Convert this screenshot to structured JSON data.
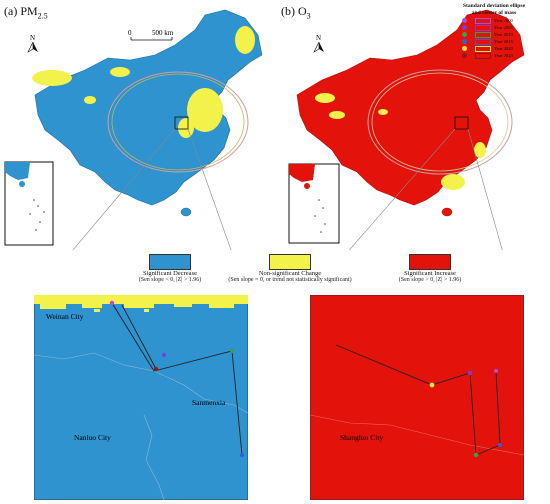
{
  "panels": {
    "a": {
      "title_prefix": "(a) PM",
      "title_sub": "2.5",
      "north_label": "N",
      "scale_zero": "0",
      "scale_label": "500 km",
      "detail_labels": {
        "city1": "Weinan City",
        "city2": "Sanmenxia",
        "city3": "Nanluo City"
      }
    },
    "b": {
      "title_prefix": "(b) O",
      "title_sub": "3",
      "north_label": "N",
      "detail_labels": {
        "city1": "Shangluo City"
      }
    }
  },
  "ellipse_legend": {
    "title": "Standard deviation ellipse\nand center of mass",
    "items": [
      {
        "label": "Year 2000",
        "color": "#b04ed6"
      },
      {
        "label": "Year 2005",
        "color": "#7a3fd0"
      },
      {
        "label": "Year 2010",
        "color": "#3f9e47"
      },
      {
        "label": "Year 2015",
        "color": "#2a64d8"
      },
      {
        "label": "Year 2020",
        "color": "#f2e33a"
      },
      {
        "label": "Year 2023",
        "color": "#8b1b1b"
      }
    ]
  },
  "trend_legend": [
    {
      "title": "Significant Decrease",
      "sub": "(Sen slope < 0, |Z| > 1.96)",
      "color": "#2e93cf"
    },
    {
      "title": "Non-significant Change",
      "sub": "(Sen slope = 0, or trend not statistically significant)",
      "color": "#f2f24a"
    },
    {
      "title": "Significant Increase",
      "sub": "(Sen slope > 0, |Z| > 1.96)",
      "color": "#e3120b"
    }
  ],
  "colors": {
    "decrease": "#2e93cf",
    "nonsig": "#f2f24a",
    "increase": "#e3120b",
    "ellipse_a": "#d89a9a",
    "ellipse_b": "#c7a0a0"
  }
}
